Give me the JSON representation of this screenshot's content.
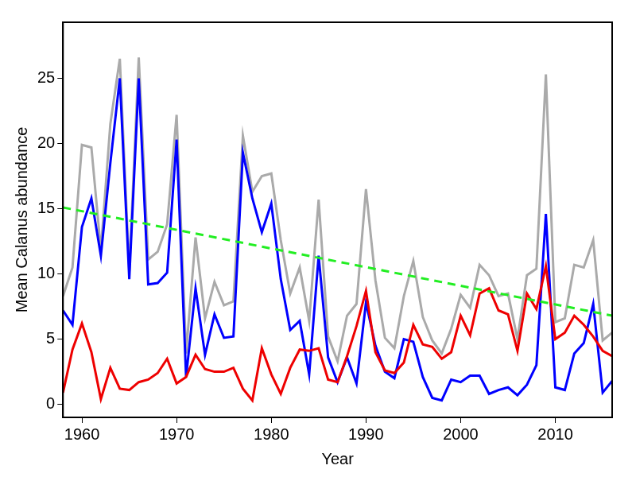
{
  "chart_data": {
    "type": "line",
    "x_label": "Year",
    "y_label": "Mean Calanus abundance",
    "x": [
      1958,
      1959,
      1960,
      1961,
      1962,
      1963,
      1964,
      1965,
      1966,
      1967,
      1968,
      1969,
      1970,
      1971,
      1972,
      1973,
      1974,
      1975,
      1976,
      1977,
      1978,
      1979,
      1980,
      1981,
      1982,
      1983,
      1984,
      1985,
      1986,
      1987,
      1988,
      1989,
      1990,
      1991,
      1992,
      1993,
      1994,
      1995,
      1996,
      1997,
      1998,
      1999,
      2000,
      2001,
      2002,
      2003,
      2004,
      2005,
      2006,
      2007,
      2008,
      2009,
      2010,
      2011,
      2012,
      2013,
      2014,
      2015,
      2016
    ],
    "series": [
      {
        "color": "#aaaaaa",
        "values": [
          8.3,
          10.5,
          19.9,
          19.7,
          11.8,
          21.5,
          26.5,
          10.2,
          26.6,
          11.1,
          11.7,
          13.8,
          22.2,
          3.9,
          12.8,
          6.6,
          9.4,
          7.6,
          7.9,
          20.6,
          16.3,
          17.5,
          17.7,
          12.6,
          8.5,
          10.5,
          6.4,
          15.7,
          5.2,
          3.3,
          6.8,
          7.7,
          16.5,
          9.5,
          5.1,
          4.3,
          8.3,
          11.0,
          6.7,
          4.9,
          3.9,
          5.8,
          8.4,
          7.4,
          10.7,
          9.9,
          8.3,
          8.5,
          5.0,
          9.9,
          10.4,
          25.3,
          6.3,
          6.6,
          10.7,
          10.5,
          12.6,
          4.9,
          5.5
        ]
      },
      {
        "color": "#0000ff",
        "values": [
          7.2,
          6.1,
          13.6,
          15.8,
          11.4,
          18.5,
          25.0,
          9.6,
          25.0,
          9.2,
          9.3,
          10.1,
          20.3,
          2.1,
          8.9,
          3.8,
          6.9,
          5.1,
          5.2,
          19.3,
          15.8,
          13.2,
          15.4,
          9.6,
          5.7,
          6.4,
          2.3,
          11.4,
          3.6,
          1.7,
          3.6,
          1.6,
          7.8,
          4.5,
          2.5,
          2.0,
          5.0,
          4.8,
          2.1,
          0.5,
          0.3,
          1.9,
          1.7,
          2.2,
          2.2,
          0.8,
          1.1,
          1.3,
          0.7,
          1.5,
          3.0,
          14.6,
          1.3,
          1.1,
          3.9,
          4.7,
          7.7,
          0.9,
          1.8
        ]
      },
      {
        "color": "#ee0000",
        "values": [
          0.9,
          4.2,
          6.2,
          4.0,
          0.4,
          2.8,
          1.2,
          1.1,
          1.7,
          1.9,
          2.4,
          3.5,
          1.6,
          2.1,
          3.8,
          2.7,
          2.5,
          2.5,
          2.8,
          1.2,
          0.3,
          4.3,
          2.3,
          0.8,
          2.8,
          4.2,
          4.1,
          4.3,
          1.9,
          1.7,
          3.7,
          6.0,
          8.7,
          4.0,
          2.6,
          2.4,
          3.2,
          6.1,
          4.6,
          4.4,
          3.5,
          4.0,
          6.8,
          5.3,
          8.5,
          8.9,
          7.2,
          6.9,
          4.1,
          8.5,
          7.3,
          10.6,
          5.0,
          5.5,
          6.8,
          6.1,
          5.2,
          4.1,
          3.7
        ]
      },
      {
        "color": "#22ee22",
        "line_style": "dashed",
        "x": [
          1958,
          2016
        ],
        "values": [
          15.1,
          6.8
        ]
      }
    ],
    "xlim": [
      1958,
      2016
    ],
    "xticks": [
      1960,
      1970,
      1980,
      1990,
      2000,
      2010
    ],
    "ylim": [
      -1,
      29.3
    ],
    "yticks": [
      0,
      5,
      10,
      15,
      20,
      25
    ],
    "grid": false
  }
}
